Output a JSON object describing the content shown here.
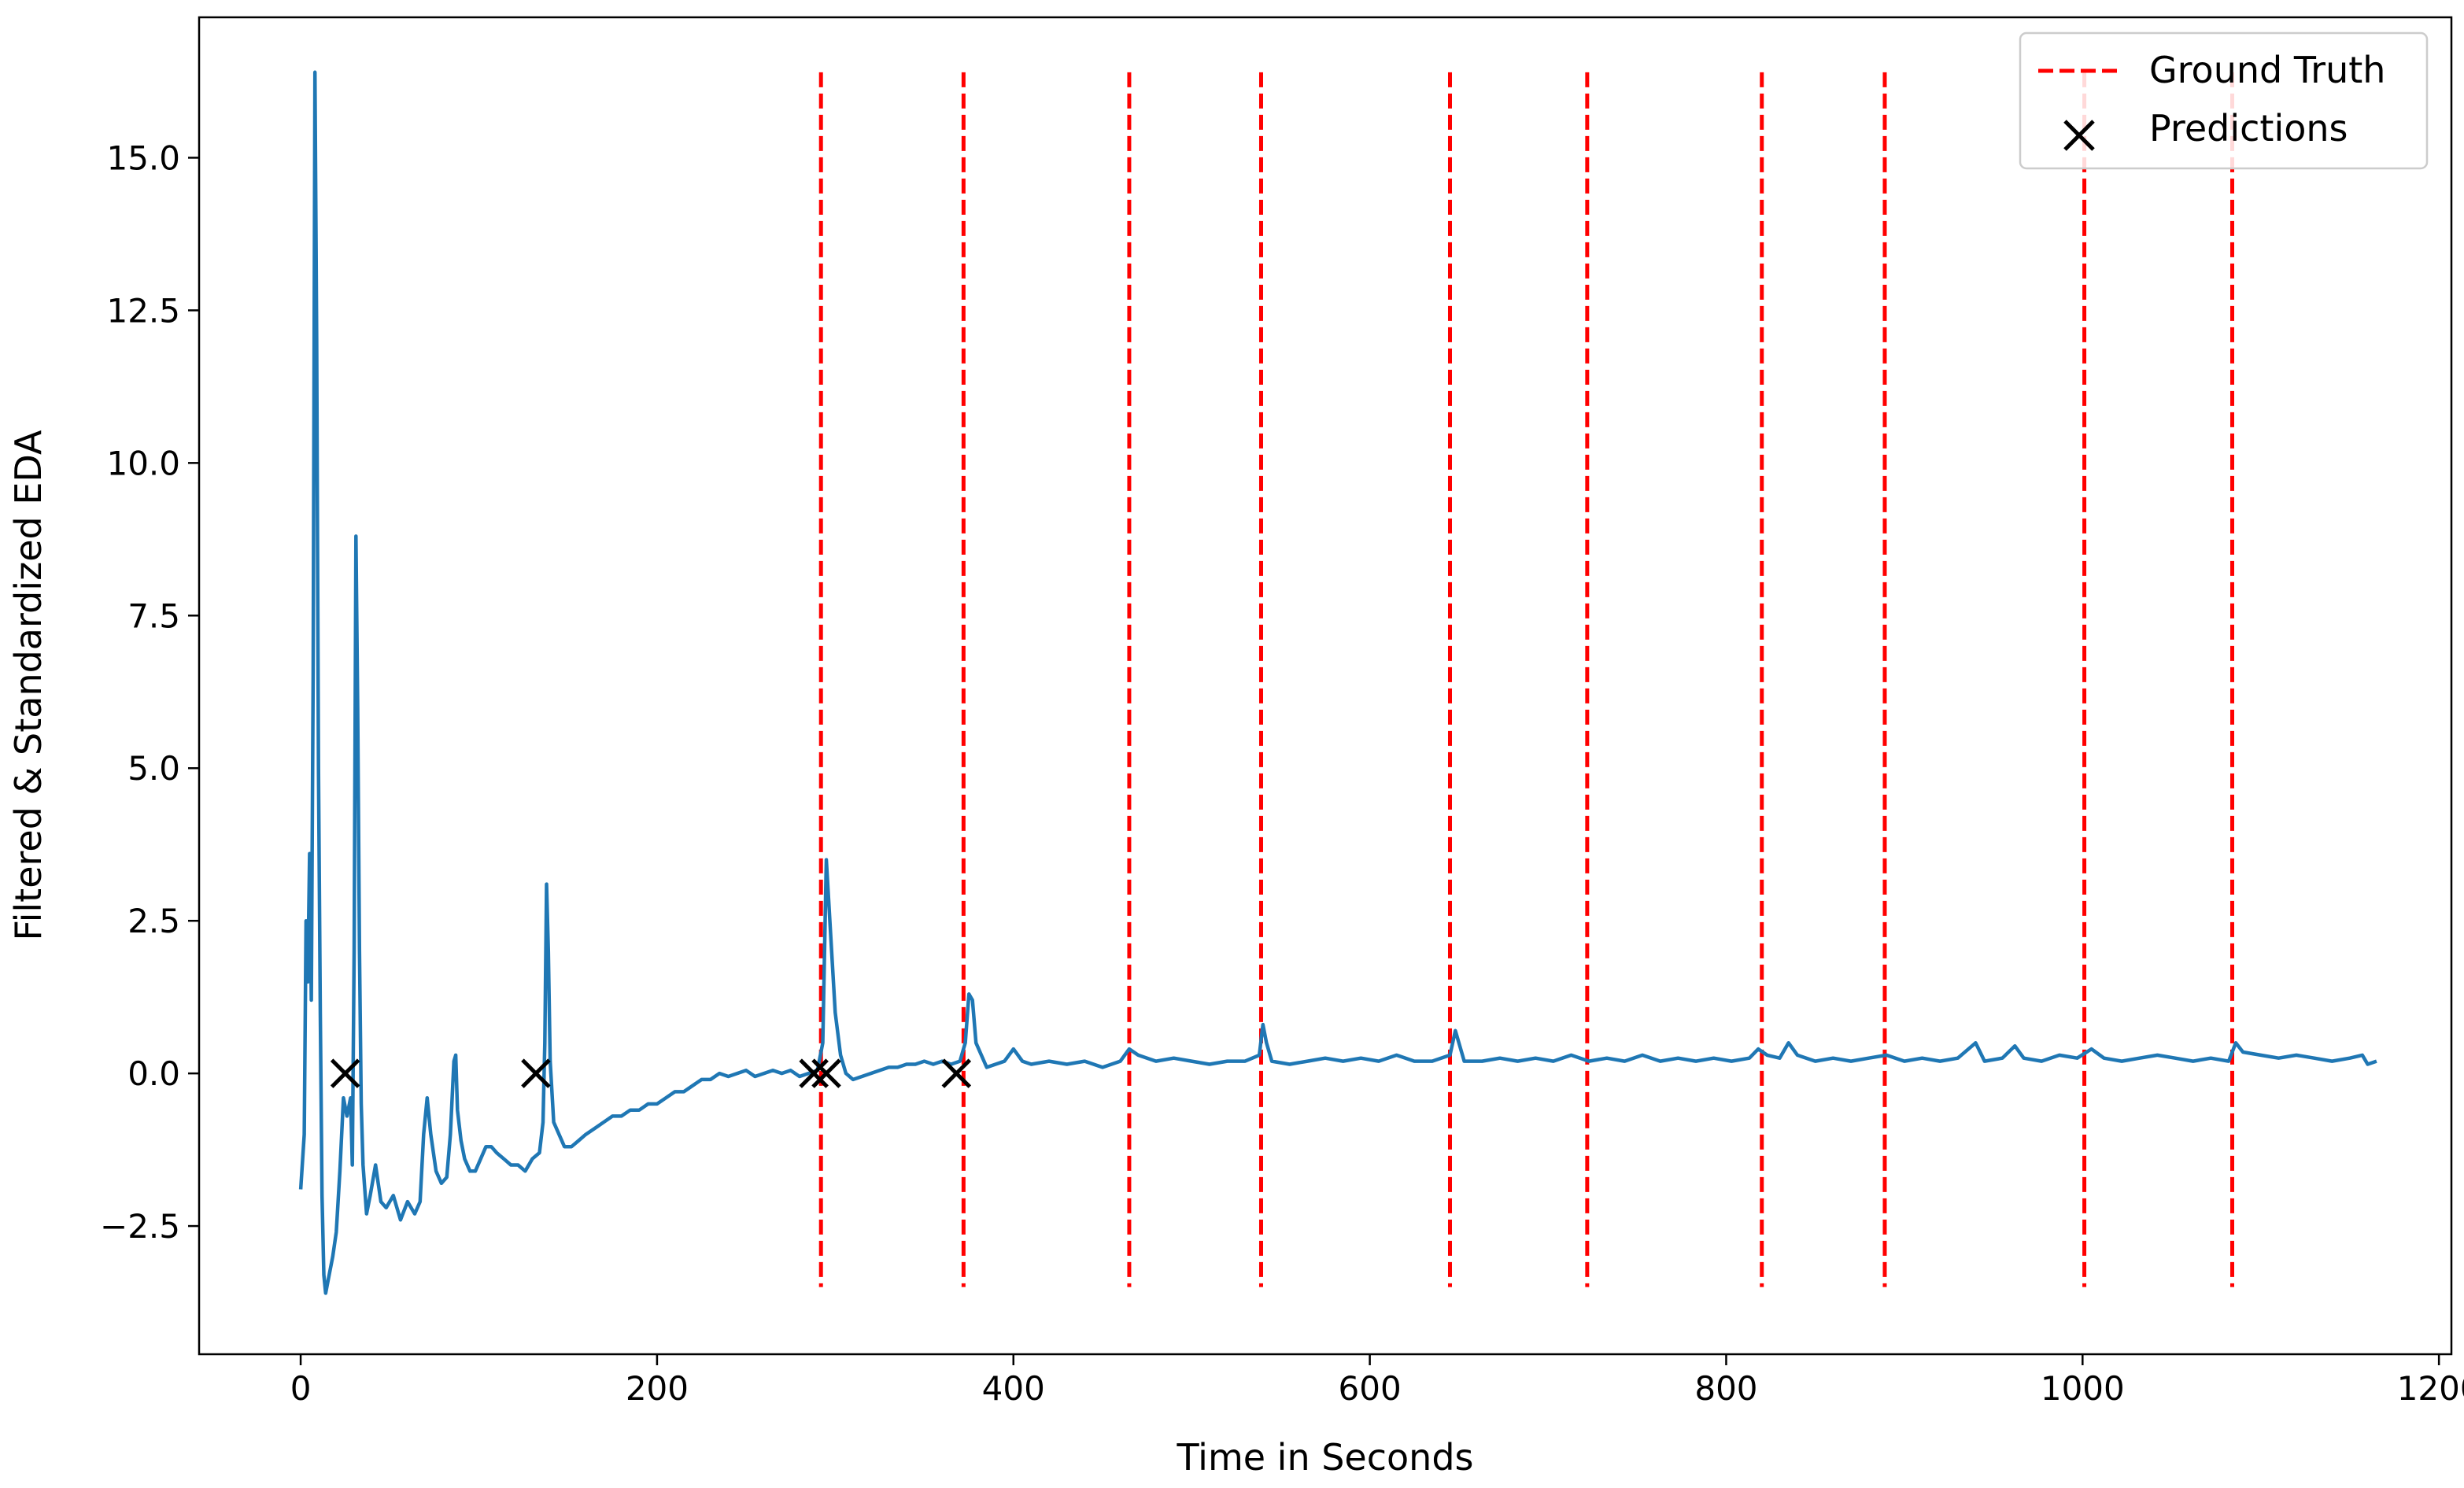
{
  "chart_data": {
    "type": "line",
    "title": "",
    "xlabel": "Time in Seconds",
    "ylabel": "Filtered & Standardized EDA",
    "xlim": [
      -57,
      1207
    ],
    "ylim": [
      -4.6,
      17.3
    ],
    "xticks": [
      0,
      200,
      400,
      600,
      800,
      1000,
      1200
    ],
    "xtick_labels": [
      "0",
      "200",
      "400",
      "600",
      "800",
      "1000",
      "1200"
    ],
    "yticks": [
      -2.5,
      0.0,
      2.5,
      5.0,
      7.5,
      10.0,
      12.5,
      15.0
    ],
    "ytick_labels": [
      "−2.5",
      "0.0",
      "2.5",
      "5.0",
      "7.5",
      "10.0",
      "12.5",
      "15.0"
    ],
    "grid": false,
    "legend_position": "top-right",
    "colors": {
      "series": "#1f77b4",
      "ground_truth": "#ff0000",
      "predictions": "#000000",
      "axes": "#000000"
    },
    "legend": [
      {
        "label": "Ground Truth",
        "marker": "dashed-line"
      },
      {
        "label": "Predictions",
        "marker": "x"
      }
    ],
    "series": [
      {
        "style": "line",
        "points": [
          [
            0,
            -1.9
          ],
          [
            2,
            -1.0
          ],
          [
            3,
            2.5
          ],
          [
            4,
            1.5
          ],
          [
            5,
            3.6
          ],
          [
            6,
            1.2
          ],
          [
            7,
            6.5
          ],
          [
            8,
            16.4
          ],
          [
            9,
            12.0
          ],
          [
            10,
            5.0
          ],
          [
            11,
            1.0
          ],
          [
            12,
            -2.0
          ],
          [
            13,
            -3.3
          ],
          [
            14,
            -3.6
          ],
          [
            16,
            -3.3
          ],
          [
            18,
            -3.0
          ],
          [
            20,
            -2.6
          ],
          [
            22,
            -1.6
          ],
          [
            24,
            -0.4
          ],
          [
            26,
            -0.7
          ],
          [
            28,
            -0.4
          ],
          [
            29,
            -1.5
          ],
          [
            30,
            2.0
          ],
          [
            31,
            8.8
          ],
          [
            32,
            6.0
          ],
          [
            33,
            2.0
          ],
          [
            34,
            -0.5
          ],
          [
            35,
            -1.5
          ],
          [
            37,
            -2.3
          ],
          [
            39,
            -2.0
          ],
          [
            42,
            -1.5
          ],
          [
            45,
            -2.1
          ],
          [
            48,
            -2.2
          ],
          [
            52,
            -2.0
          ],
          [
            56,
            -2.4
          ],
          [
            60,
            -2.1
          ],
          [
            64,
            -2.3
          ],
          [
            67,
            -2.1
          ],
          [
            69,
            -1.0
          ],
          [
            71,
            -0.4
          ],
          [
            73,
            -1.0
          ],
          [
            76,
            -1.6
          ],
          [
            79,
            -1.8
          ],
          [
            82,
            -1.7
          ],
          [
            84,
            -1.0
          ],
          [
            86,
            0.2
          ],
          [
            87,
            0.3
          ],
          [
            88,
            -0.6
          ],
          [
            90,
            -1.1
          ],
          [
            92,
            -1.4
          ],
          [
            95,
            -1.6
          ],
          [
            98,
            -1.6
          ],
          [
            101,
            -1.4
          ],
          [
            104,
            -1.2
          ],
          [
            107,
            -1.2
          ],
          [
            110,
            -1.3
          ],
          [
            114,
            -1.4
          ],
          [
            118,
            -1.5
          ],
          [
            122,
            -1.5
          ],
          [
            126,
            -1.6
          ],
          [
            130,
            -1.4
          ],
          [
            134,
            -1.3
          ],
          [
            136,
            -0.8
          ],
          [
            137,
            0.5
          ],
          [
            138,
            3.1
          ],
          [
            139,
            2.0
          ],
          [
            140,
            0.2
          ],
          [
            142,
            -0.8
          ],
          [
            145,
            -1.0
          ],
          [
            148,
            -1.2
          ],
          [
            152,
            -1.2
          ],
          [
            156,
            -1.1
          ],
          [
            160,
            -1.0
          ],
          [
            165,
            -0.9
          ],
          [
            170,
            -0.8
          ],
          [
            175,
            -0.7
          ],
          [
            180,
            -0.7
          ],
          [
            185,
            -0.6
          ],
          [
            190,
            -0.6
          ],
          [
            195,
            -0.5
          ],
          [
            200,
            -0.5
          ],
          [
            205,
            -0.4
          ],
          [
            210,
            -0.3
          ],
          [
            215,
            -0.3
          ],
          [
            220,
            -0.2
          ],
          [
            225,
            -0.1
          ],
          [
            230,
            -0.1
          ],
          [
            235,
            0.0
          ],
          [
            240,
            -0.05
          ],
          [
            245,
            0.0
          ],
          [
            250,
            0.05
          ],
          [
            255,
            -0.05
          ],
          [
            260,
            0.0
          ],
          [
            265,
            0.05
          ],
          [
            270,
            0.0
          ],
          [
            275,
            0.05
          ],
          [
            280,
            -0.05
          ],
          [
            285,
            0.0
          ],
          [
            290,
            0.05
          ],
          [
            293,
            0.5
          ],
          [
            295,
            3.5
          ],
          [
            297,
            2.5
          ],
          [
            300,
            1.0
          ],
          [
            303,
            0.3
          ],
          [
            306,
            0.0
          ],
          [
            310,
            -0.1
          ],
          [
            315,
            -0.05
          ],
          [
            320,
            0.0
          ],
          [
            325,
            0.05
          ],
          [
            330,
            0.1
          ],
          [
            335,
            0.1
          ],
          [
            340,
            0.15
          ],
          [
            345,
            0.15
          ],
          [
            350,
            0.2
          ],
          [
            355,
            0.15
          ],
          [
            360,
            0.2
          ],
          [
            365,
            0.15
          ],
          [
            370,
            0.2
          ],
          [
            373,
            0.5
          ],
          [
            375,
            1.3
          ],
          [
            377,
            1.2
          ],
          [
            379,
            0.5
          ],
          [
            382,
            0.3
          ],
          [
            385,
            0.1
          ],
          [
            390,
            0.15
          ],
          [
            395,
            0.2
          ],
          [
            400,
            0.4
          ],
          [
            405,
            0.2
          ],
          [
            410,
            0.15
          ],
          [
            420,
            0.2
          ],
          [
            430,
            0.15
          ],
          [
            440,
            0.2
          ],
          [
            450,
            0.1
          ],
          [
            460,
            0.2
          ],
          [
            465,
            0.4
          ],
          [
            470,
            0.3
          ],
          [
            480,
            0.2
          ],
          [
            490,
            0.25
          ],
          [
            500,
            0.2
          ],
          [
            510,
            0.15
          ],
          [
            520,
            0.2
          ],
          [
            530,
            0.2
          ],
          [
            538,
            0.3
          ],
          [
            540,
            0.8
          ],
          [
            542,
            0.5
          ],
          [
            545,
            0.2
          ],
          [
            555,
            0.15
          ],
          [
            565,
            0.2
          ],
          [
            575,
            0.25
          ],
          [
            585,
            0.2
          ],
          [
            595,
            0.25
          ],
          [
            605,
            0.2
          ],
          [
            615,
            0.3
          ],
          [
            625,
            0.2
          ],
          [
            635,
            0.2
          ],
          [
            645,
            0.3
          ],
          [
            648,
            0.7
          ],
          [
            650,
            0.5
          ],
          [
            653,
            0.2
          ],
          [
            663,
            0.2
          ],
          [
            673,
            0.25
          ],
          [
            683,
            0.2
          ],
          [
            693,
            0.25
          ],
          [
            703,
            0.2
          ],
          [
            713,
            0.3
          ],
          [
            723,
            0.2
          ],
          [
            733,
            0.25
          ],
          [
            743,
            0.2
          ],
          [
            753,
            0.3
          ],
          [
            763,
            0.2
          ],
          [
            773,
            0.25
          ],
          [
            783,
            0.2
          ],
          [
            793,
            0.25
          ],
          [
            803,
            0.2
          ],
          [
            813,
            0.25
          ],
          [
            818,
            0.4
          ],
          [
            823,
            0.3
          ],
          [
            830,
            0.25
          ],
          [
            835,
            0.5
          ],
          [
            840,
            0.3
          ],
          [
            850,
            0.2
          ],
          [
            860,
            0.25
          ],
          [
            870,
            0.2
          ],
          [
            880,
            0.25
          ],
          [
            890,
            0.3
          ],
          [
            900,
            0.2
          ],
          [
            910,
            0.25
          ],
          [
            920,
            0.2
          ],
          [
            930,
            0.25
          ],
          [
            940,
            0.5
          ],
          [
            945,
            0.2
          ],
          [
            955,
            0.25
          ],
          [
            962,
            0.45
          ],
          [
            967,
            0.25
          ],
          [
            977,
            0.2
          ],
          [
            987,
            0.3
          ],
          [
            997,
            0.25
          ],
          [
            1005,
            0.4
          ],
          [
            1012,
            0.25
          ],
          [
            1022,
            0.2
          ],
          [
            1032,
            0.25
          ],
          [
            1042,
            0.3
          ],
          [
            1052,
            0.25
          ],
          [
            1062,
            0.2
          ],
          [
            1072,
            0.25
          ],
          [
            1082,
            0.2
          ],
          [
            1086,
            0.5
          ],
          [
            1090,
            0.35
          ],
          [
            1100,
            0.3
          ],
          [
            1110,
            0.25
          ],
          [
            1120,
            0.3
          ],
          [
            1130,
            0.25
          ],
          [
            1140,
            0.2
          ],
          [
            1150,
            0.25
          ],
          [
            1157,
            0.3
          ],
          [
            1160,
            0.15
          ],
          [
            1165,
            0.2
          ]
        ]
      },
      {
        "name": "Ground Truth",
        "style": "vertical-dashed-lines",
        "x": [
          292,
          372,
          465,
          539,
          645,
          722,
          820,
          889,
          1001,
          1084
        ],
        "ymin": -3.5,
        "ymax": 16.4
      },
      {
        "name": "Predictions",
        "style": "x-markers",
        "points": [
          [
            25,
            0.0
          ],
          [
            132,
            0.0
          ],
          [
            288,
            0.0
          ],
          [
            295,
            0.0
          ],
          [
            368,
            0.0
          ]
        ]
      }
    ]
  }
}
